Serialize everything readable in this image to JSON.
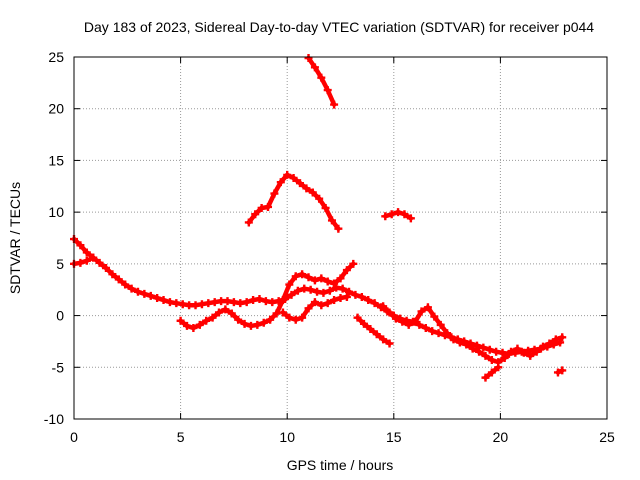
{
  "chart_data": {
    "type": "scatter",
    "title": "Day 183 of 2023, Sidereal Day-to-day VTEC variation (SDTVAR) for receiver p044",
    "xlabel": "GPS time / hours",
    "ylabel": "SDTVAR / TECUs",
    "xlim": [
      0,
      25
    ],
    "ylim": [
      -10,
      25
    ],
    "xticks": [
      0,
      5,
      10,
      15,
      20,
      25
    ],
    "yticks": [
      -10,
      -5,
      0,
      5,
      10,
      15,
      20,
      25
    ],
    "grid": true,
    "marker": "+",
    "color": "#ff0000",
    "series": [
      {
        "name": "trace-a",
        "x": [
          0.0,
          0.3,
          0.6,
          0.9,
          1.2,
          1.5,
          1.8,
          2.1,
          2.4,
          2.7,
          3.0,
          3.3,
          3.6,
          3.9,
          4.2,
          4.5,
          4.8,
          5.1,
          5.4,
          5.7,
          6.0,
          6.3,
          6.6,
          6.9,
          7.2,
          7.5,
          7.8,
          8.1,
          8.4,
          8.7,
          9.0,
          9.3,
          9.6,
          9.9,
          10.2,
          10.5,
          10.8,
          11.1,
          11.4,
          11.7,
          12.0,
          12.3,
          12.6,
          12.9,
          13.2,
          13.5,
          13.8,
          14.1,
          14.4,
          14.7,
          15.0,
          15.3,
          15.6,
          15.9,
          16.2,
          16.5,
          16.8,
          17.1,
          17.4,
          17.7,
          18.0,
          18.3,
          18.6,
          18.9,
          19.2,
          19.5,
          19.8,
          20.1,
          20.4,
          20.7,
          21.0,
          21.3,
          21.6,
          21.9,
          22.2,
          22.5,
          22.8
        ],
        "y": [
          7.4,
          6.8,
          6.1,
          5.6,
          5.1,
          4.6,
          4.0,
          3.5,
          3.0,
          2.6,
          2.3,
          2.1,
          1.9,
          1.7,
          1.5,
          1.3,
          1.2,
          1.1,
          1.0,
          1.0,
          1.1,
          1.2,
          1.3,
          1.4,
          1.4,
          1.3,
          1.2,
          1.3,
          1.5,
          1.6,
          1.4,
          1.3,
          1.4,
          1.6,
          2.0,
          2.4,
          2.6,
          2.5,
          2.3,
          2.2,
          2.4,
          2.7,
          2.6,
          2.3,
          2.0,
          1.8,
          1.5,
          1.2,
          0.8,
          0.4,
          0.0,
          -0.3,
          -0.5,
          -0.6,
          -0.9,
          -1.2,
          -1.5,
          -1.7,
          -1.9,
          -2.1,
          -2.3,
          -2.5,
          -2.7,
          -2.9,
          -3.1,
          -3.3,
          -3.5,
          -3.6,
          -3.7,
          -3.6,
          -3.5,
          -3.4,
          -3.3,
          -3.2,
          -3.0,
          -2.8,
          -2.6
        ]
      },
      {
        "name": "trace-b",
        "x": [
          0.0,
          0.3,
          0.6,
          0.9
        ],
        "y": [
          5.0,
          5.1,
          5.3,
          5.6
        ]
      },
      {
        "name": "trace-c",
        "x": [
          5.0,
          5.3,
          5.6,
          5.9,
          6.2,
          6.5,
          6.8,
          7.1,
          7.4,
          7.7,
          8.0,
          8.3,
          8.6,
          8.9,
          9.2,
          9.5,
          9.8,
          10.1,
          10.4,
          10.7,
          11.0,
          11.3,
          11.6,
          11.9,
          12.2,
          12.5,
          12.8,
          13.1
        ],
        "y": [
          -0.5,
          -1.0,
          -1.2,
          -0.9,
          -0.5,
          -0.2,
          0.3,
          0.6,
          0.2,
          -0.4,
          -0.8,
          -1.0,
          -0.9,
          -0.7,
          -0.4,
          0.2,
          1.5,
          3.0,
          3.8,
          4.0,
          3.7,
          3.4,
          3.6,
          3.3,
          3.1,
          3.6,
          4.4,
          5.0
        ]
      },
      {
        "name": "trace-d",
        "x": [
          9.8,
          10.1,
          10.4,
          10.7,
          11.0,
          11.3,
          11.6,
          11.9,
          12.2,
          12.5,
          12.8
        ],
        "y": [
          0.3,
          -0.2,
          -0.4,
          -0.2,
          0.7,
          1.3,
          1.0,
          1.2,
          1.5,
          1.7,
          1.8
        ]
      },
      {
        "name": "trace-e",
        "x": [
          8.2,
          8.5,
          8.8,
          9.1,
          9.4,
          9.7,
          10.0,
          10.3,
          10.6,
          10.9,
          11.2,
          11.5,
          11.8,
          12.1,
          12.4
        ],
        "y": [
          9.0,
          9.8,
          10.4,
          10.5,
          11.8,
          12.9,
          13.6,
          13.3,
          12.8,
          12.3,
          11.9,
          11.3,
          10.4,
          9.2,
          8.4
        ]
      },
      {
        "name": "trace-f",
        "x": [
          11.0,
          11.3,
          11.6,
          11.9,
          12.2
        ],
        "y": [
          24.9,
          24.0,
          23.0,
          21.8,
          20.4
        ]
      },
      {
        "name": "trace-g",
        "x": [
          14.5,
          14.8,
          15.1,
          15.4,
          15.7,
          16.0,
          16.3,
          16.6,
          16.9,
          17.2,
          17.5,
          17.8,
          18.1,
          18.4,
          18.7,
          19.0,
          19.3,
          19.6,
          19.9,
          20.2,
          20.5,
          20.8,
          21.1,
          21.4,
          21.7,
          22.0,
          22.3,
          22.6,
          22.9
        ],
        "y": [
          0.9,
          0.3,
          -0.3,
          -0.6,
          -0.9,
          -0.6,
          0.4,
          0.8,
          -0.1,
          -0.9,
          -1.7,
          -2.3,
          -2.6,
          -2.8,
          -3.2,
          -3.5,
          -3.9,
          -4.3,
          -4.5,
          -4.1,
          -3.5,
          -3.2,
          -3.6,
          -3.9,
          -3.5,
          -3.0,
          -2.7,
          -2.3,
          -2.1
        ]
      },
      {
        "name": "trace-h",
        "x": [
          13.3,
          13.6,
          13.9,
          14.2,
          14.5,
          14.8
        ],
        "y": [
          -0.2,
          -0.8,
          -1.3,
          -1.8,
          -2.3,
          -2.7
        ]
      },
      {
        "name": "trace-i",
        "x": [
          14.6,
          14.9,
          15.2,
          15.5,
          15.8
        ],
        "y": [
          9.6,
          9.8,
          10.0,
          9.8,
          9.4
        ]
      },
      {
        "name": "trace-j",
        "x": [
          19.3,
          19.6,
          19.9
        ],
        "y": [
          -6.0,
          -5.5,
          -5.0
        ]
      },
      {
        "name": "trace-k",
        "x": [
          22.7,
          22.9
        ],
        "y": [
          -5.5,
          -5.3
        ]
      }
    ]
  }
}
